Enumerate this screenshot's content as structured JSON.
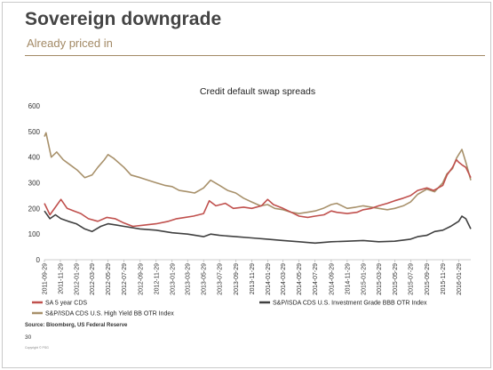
{
  "slide": {
    "title": "Sovereign downgrade",
    "subtitle": "Already priced in",
    "source": "Source: Bloomberg, US Federal Reserve",
    "page_number": "30",
    "copyright": "Copyright © PSG"
  },
  "chart_data": {
    "type": "line",
    "title": "Credit default swap spreads",
    "xlabel": "",
    "ylabel": "",
    "ylim": [
      0,
      600
    ],
    "yticks": [
      0,
      100,
      200,
      300,
      400,
      500,
      600
    ],
    "grid": false,
    "legend_position": "bottom",
    "x_tick_labels": [
      "2011-09-29",
      "2011-11-29",
      "2012-01-29",
      "2012-03-29",
      "2012-05-29",
      "2012-07-29",
      "2012-09-29",
      "2012-11-29",
      "2013-01-29",
      "2013-03-29",
      "2013-05-29",
      "2013-07-29",
      "2013-09-29",
      "2013-11-29",
      "2014-01-29",
      "2014-03-29",
      "2014-05-29",
      "2014-07-29",
      "2014-09-29",
      "2014-11-29",
      "2015-01-29",
      "2015-03-29",
      "2015-05-29",
      "2015-07-29",
      "2015-09-29",
      "2015-11-29",
      "2016-01-29"
    ],
    "x_start": "2011-09-29",
    "x_end": "2016-03-15",
    "series": [
      {
        "name": "SA 5 year CDS",
        "color": "#c0504d",
        "points": [
          [
            "2011-09-29",
            220
          ],
          [
            "2011-10-20",
            175
          ],
          [
            "2011-11-10",
            205
          ],
          [
            "2011-12-01",
            235
          ],
          [
            "2011-12-25",
            200
          ],
          [
            "2012-01-20",
            190
          ],
          [
            "2012-02-15",
            180
          ],
          [
            "2012-03-15",
            160
          ],
          [
            "2012-04-20",
            150
          ],
          [
            "2012-05-25",
            165
          ],
          [
            "2012-06-25",
            160
          ],
          [
            "2012-07-25",
            145
          ],
          [
            "2012-09-01",
            130
          ],
          [
            "2012-10-15",
            135
          ],
          [
            "2012-11-29",
            140
          ],
          [
            "2013-01-15",
            150
          ],
          [
            "2013-02-15",
            160
          ],
          [
            "2013-03-20",
            165
          ],
          [
            "2013-04-20",
            170
          ],
          [
            "2013-05-29",
            180
          ],
          [
            "2013-06-20",
            230
          ],
          [
            "2013-07-15",
            210
          ],
          [
            "2013-08-20",
            220
          ],
          [
            "2013-09-20",
            200
          ],
          [
            "2013-10-29",
            205
          ],
          [
            "2013-11-29",
            200
          ],
          [
            "2014-01-05",
            210
          ],
          [
            "2014-01-29",
            235
          ],
          [
            "2014-02-20",
            215
          ],
          [
            "2014-03-29",
            200
          ],
          [
            "2014-04-29",
            185
          ],
          [
            "2014-05-29",
            170
          ],
          [
            "2014-07-01",
            165
          ],
          [
            "2014-07-29",
            170
          ],
          [
            "2014-09-01",
            175
          ],
          [
            "2014-09-29",
            190
          ],
          [
            "2014-10-20",
            185
          ],
          [
            "2014-11-29",
            180
          ],
          [
            "2015-01-05",
            185
          ],
          [
            "2015-01-29",
            195
          ],
          [
            "2015-03-01",
            200
          ],
          [
            "2015-03-29",
            210
          ],
          [
            "2015-05-01",
            220
          ],
          [
            "2015-05-29",
            230
          ],
          [
            "2015-07-01",
            240
          ],
          [
            "2015-07-29",
            250
          ],
          [
            "2015-08-25",
            270
          ],
          [
            "2015-09-29",
            280
          ],
          [
            "2015-10-25",
            270
          ],
          [
            "2015-11-29",
            290
          ],
          [
            "2015-12-15",
            330
          ],
          [
            "2016-01-05",
            360
          ],
          [
            "2016-01-20",
            390
          ],
          [
            "2016-01-29",
            380
          ],
          [
            "2016-02-10",
            370
          ],
          [
            "2016-02-25",
            360
          ],
          [
            "2016-03-15",
            320
          ]
        ]
      },
      {
        "name": "S&P/ISDA CDS U.S. Investment Grade BBB OTR Index",
        "color": "#404040",
        "points": [
          [
            "2011-09-29",
            190
          ],
          [
            "2011-10-20",
            160
          ],
          [
            "2011-11-10",
            175
          ],
          [
            "2011-12-01",
            160
          ],
          [
            "2011-12-29",
            150
          ],
          [
            "2012-01-29",
            140
          ],
          [
            "2012-03-01",
            120
          ],
          [
            "2012-03-29",
            110
          ],
          [
            "2012-05-01",
            130
          ],
          [
            "2012-05-29",
            140
          ],
          [
            "2012-07-01",
            135
          ],
          [
            "2012-07-29",
            130
          ],
          [
            "2012-09-29",
            120
          ],
          [
            "2012-11-29",
            115
          ],
          [
            "2013-01-29",
            105
          ],
          [
            "2013-03-29",
            100
          ],
          [
            "2013-05-29",
            90
          ],
          [
            "2013-06-25",
            100
          ],
          [
            "2013-07-29",
            95
          ],
          [
            "2013-09-29",
            90
          ],
          [
            "2013-11-29",
            85
          ],
          [
            "2014-01-29",
            80
          ],
          [
            "2014-03-29",
            75
          ],
          [
            "2014-05-29",
            70
          ],
          [
            "2014-07-29",
            65
          ],
          [
            "2014-09-29",
            70
          ],
          [
            "2014-11-29",
            72
          ],
          [
            "2015-01-29",
            75
          ],
          [
            "2015-03-29",
            70
          ],
          [
            "2015-05-29",
            72
          ],
          [
            "2015-07-29",
            80
          ],
          [
            "2015-08-25",
            90
          ],
          [
            "2015-09-29",
            95
          ],
          [
            "2015-10-29",
            110
          ],
          [
            "2015-11-29",
            115
          ],
          [
            "2015-12-29",
            130
          ],
          [
            "2016-01-29",
            150
          ],
          [
            "2016-02-10",
            170
          ],
          [
            "2016-02-25",
            160
          ],
          [
            "2016-03-15",
            120
          ]
        ]
      },
      {
        "name": "S&P/ISDA CDS U.S. High Yield BB OTR Index",
        "color": "#a8916b",
        "points": [
          [
            "2011-09-29",
            480
          ],
          [
            "2011-10-05",
            495
          ],
          [
            "2011-10-25",
            400
          ],
          [
            "2011-11-15",
            420
          ],
          [
            "2011-12-10",
            390
          ],
          [
            "2012-01-05",
            370
          ],
          [
            "2012-02-01",
            350
          ],
          [
            "2012-03-01",
            320
          ],
          [
            "2012-03-29",
            330
          ],
          [
            "2012-04-20",
            360
          ],
          [
            "2012-05-15",
            390
          ],
          [
            "2012-05-29",
            410
          ],
          [
            "2012-06-20",
            395
          ],
          [
            "2012-07-29",
            360
          ],
          [
            "2012-08-25",
            330
          ],
          [
            "2012-09-29",
            320
          ],
          [
            "2012-10-29",
            310
          ],
          [
            "2012-11-29",
            300
          ],
          [
            "2013-01-01",
            290
          ],
          [
            "2013-01-29",
            285
          ],
          [
            "2013-02-25",
            270
          ],
          [
            "2013-03-29",
            265
          ],
          [
            "2013-04-25",
            260
          ],
          [
            "2013-05-29",
            280
          ],
          [
            "2013-06-25",
            310
          ],
          [
            "2013-07-29",
            290
          ],
          [
            "2013-08-29",
            270
          ],
          [
            "2013-09-29",
            260
          ],
          [
            "2013-10-29",
            240
          ],
          [
            "2013-11-29",
            225
          ],
          [
            "2014-01-01",
            210
          ],
          [
            "2014-01-29",
            215
          ],
          [
            "2014-02-25",
            200
          ],
          [
            "2014-03-29",
            195
          ],
          [
            "2014-04-29",
            185
          ],
          [
            "2014-05-29",
            180
          ],
          [
            "2014-06-29",
            185
          ],
          [
            "2014-07-29",
            190
          ],
          [
            "2014-08-29",
            200
          ],
          [
            "2014-09-29",
            215
          ],
          [
            "2014-10-20",
            220
          ],
          [
            "2014-11-29",
            200
          ],
          [
            "2015-01-01",
            205
          ],
          [
            "2015-01-29",
            210
          ],
          [
            "2015-03-01",
            205
          ],
          [
            "2015-03-29",
            200
          ],
          [
            "2015-05-01",
            195
          ],
          [
            "2015-05-29",
            200
          ],
          [
            "2015-07-01",
            210
          ],
          [
            "2015-07-29",
            225
          ],
          [
            "2015-08-25",
            255
          ],
          [
            "2015-09-29",
            275
          ],
          [
            "2015-10-29",
            265
          ],
          [
            "2015-11-29",
            300
          ],
          [
            "2015-12-15",
            335
          ],
          [
            "2016-01-05",
            355
          ],
          [
            "2016-01-20",
            395
          ],
          [
            "2016-01-29",
            410
          ],
          [
            "2016-02-10",
            430
          ],
          [
            "2016-02-25",
            380
          ],
          [
            "2016-03-15",
            310
          ]
        ]
      }
    ]
  }
}
